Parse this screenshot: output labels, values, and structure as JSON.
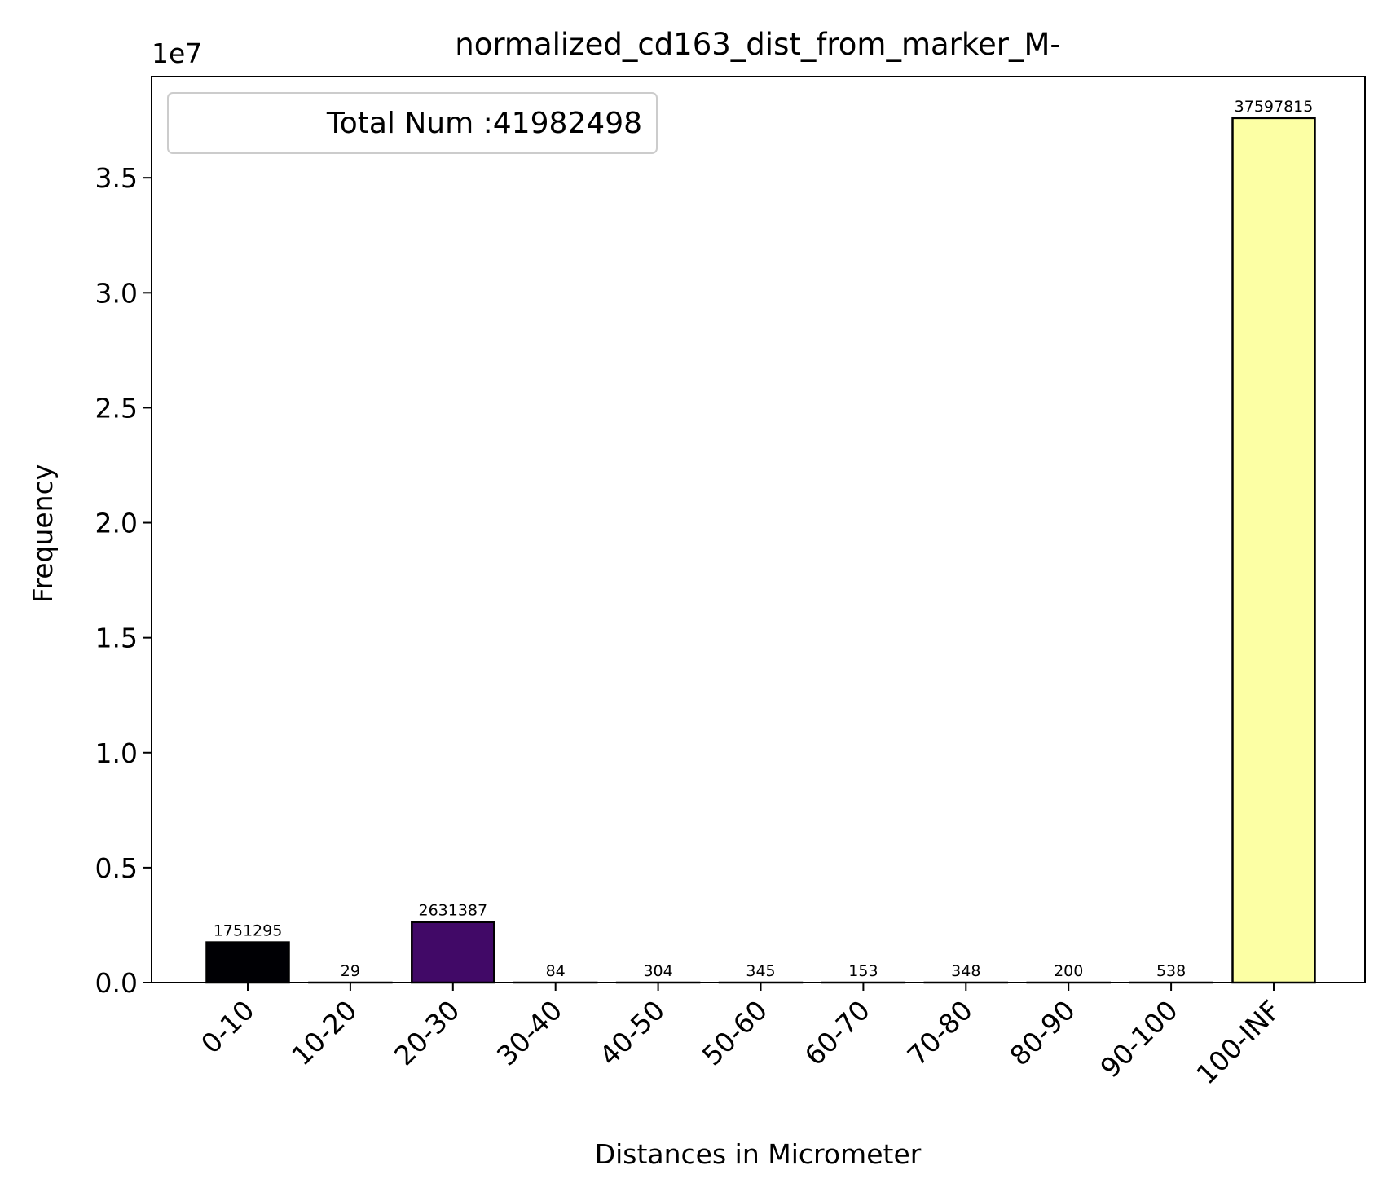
{
  "chart_data": {
    "type": "bar",
    "title": "normalized_cd163_dist_from_marker_M-",
    "xlabel": "Distances in Micrometer",
    "ylabel": "Frequency",
    "offset_text": "1e7",
    "ylim": [
      0,
      39400000
    ],
    "yticks": [
      0,
      5000000,
      10000000,
      15000000,
      20000000,
      25000000,
      30000000,
      35000000
    ],
    "ytick_labels": [
      "0.0",
      "0.5",
      "1.0",
      "1.5",
      "2.0",
      "2.5",
      "3.0",
      "3.5"
    ],
    "categories": [
      "0-10",
      "10-20",
      "20-30",
      "30-40",
      "40-50",
      "50-60",
      "60-70",
      "70-80",
      "80-90",
      "90-100",
      "100-INF"
    ],
    "values": [
      1751295,
      29,
      2631387,
      84,
      304,
      345,
      153,
      348,
      200,
      538,
      37597815
    ],
    "value_labels": [
      "1751295",
      "29",
      "2631387",
      "84",
      "304",
      "345",
      "153",
      "348",
      "200",
      "538",
      "37597815"
    ],
    "colors": [
      "#000004",
      "#0d0829",
      "#410967",
      "#6a176e",
      "#932667",
      "#bc3754",
      "#dd513a",
      "#f37819",
      "#fca50a",
      "#f6d746",
      "#fcffa4"
    ],
    "edge_color": "#000000",
    "legend": {
      "text": "Total Num :41982498",
      "position": "upper-left"
    },
    "grid": false
  }
}
